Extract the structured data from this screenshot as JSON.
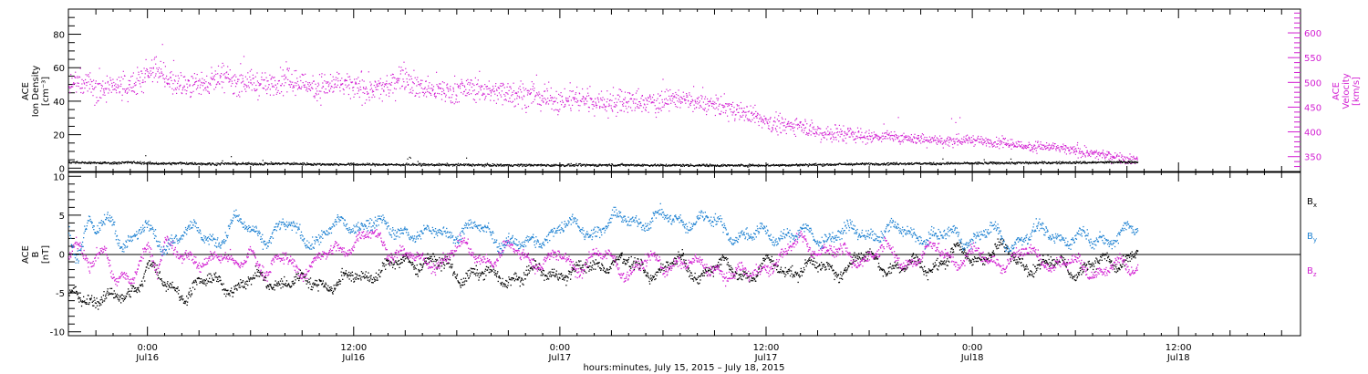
{
  "colors": {
    "axis": "#000000",
    "density": "#000000",
    "velocity": "#d21ed2",
    "bx": "#000000",
    "by": "#1e82d2",
    "bz": "#d21ed2"
  },
  "xaxis": {
    "title": "hours:minutes, July 15, 2015 – July 18, 2015",
    "range_hours": [
      -4.6,
      67.1
    ],
    "major_ticks": [
      {
        "h": 0,
        "time": "0:00",
        "date": "Jul16"
      },
      {
        "h": 12,
        "time": "12:00",
        "date": "Jul16"
      },
      {
        "h": 24,
        "time": "0:00",
        "date": "Jul17"
      },
      {
        "h": 36,
        "time": "12:00",
        "date": "Jul17"
      },
      {
        "h": 48,
        "time": "0:00",
        "date": "Jul18"
      },
      {
        "h": 60,
        "time": "12:00",
        "date": "Jul18"
      }
    ]
  },
  "chart_data": [
    {
      "type": "scatter",
      "panel": "plasma",
      "left_axis": {
        "label_lines": [
          "ACE",
          "Ion Density",
          "[cm⁻³]"
        ],
        "ylim": [
          -2,
          95
        ],
        "ticks": [
          0,
          20,
          40,
          60,
          80
        ]
      },
      "right_axis": {
        "label_lines": [
          "ACE",
          "Velocity",
          "[km/s]"
        ],
        "ylim": [
          320,
          648
        ],
        "ticks": [
          350,
          400,
          450,
          500,
          550,
          600
        ]
      },
      "series": [
        {
          "axis": "left",
          "color_key": "density",
          "x_hours": [
            -4.6,
            -4,
            -3,
            -2,
            -1,
            0,
            1,
            2,
            3,
            4,
            5,
            6,
            8,
            10,
            12,
            14,
            16,
            18,
            20,
            22,
            24,
            26,
            28,
            30,
            32,
            34,
            36,
            38,
            40,
            42,
            44,
            46,
            48,
            50,
            52,
            54,
            56,
            57.6
          ],
          "values": [
            3.8,
            3.6,
            3.5,
            3.3,
            3.8,
            3.2,
            3.0,
            3.2,
            2.9,
            2.8,
            3.0,
            2.8,
            3.0,
            2.6,
            2.5,
            2.4,
            2.3,
            2.3,
            2.1,
            2.1,
            2.0,
            2.1,
            2.2,
            2.0,
            2.0,
            1.9,
            2.0,
            2.2,
            2.5,
            2.8,
            3.0,
            3.0,
            3.2,
            3.4,
            3.5,
            3.6,
            3.8,
            4.0
          ]
        },
        {
          "axis": "right",
          "color_key": "velocity",
          "x_hours": [
            -4.6,
            -4.1,
            -3.5,
            -3,
            -2.5,
            -2,
            -1.5,
            -1,
            -0.5,
            0,
            0.5,
            1,
            2,
            3,
            4,
            5,
            6,
            7,
            8,
            9,
            10,
            11,
            12,
            13,
            14,
            14.8,
            15.5,
            16,
            17,
            18,
            19,
            20,
            21,
            22,
            23,
            24,
            25,
            26,
            27,
            28,
            29,
            30,
            31,
            32,
            33,
            34,
            35,
            36,
            37,
            38,
            39,
            40,
            41,
            42,
            43,
            44,
            45,
            46,
            47,
            48,
            49,
            50,
            51,
            52,
            53,
            54,
            55,
            56,
            57,
            57.6
          ],
          "values": [
            490,
            500,
            505,
            490,
            485,
            490,
            490,
            492,
            505,
            520,
            530,
            510,
            495,
            498,
            510,
            505,
            500,
            496,
            505,
            498,
            492,
            498,
            490,
            485,
            490,
            520,
            497,
            490,
            483,
            485,
            490,
            482,
            483,
            475,
            472,
            465,
            470,
            463,
            460,
            462,
            458,
            465,
            470,
            458,
            455,
            448,
            437,
            422,
            412,
            418,
            400,
            398,
            397,
            390,
            393,
            388,
            387,
            383,
            382,
            385,
            380,
            378,
            372,
            372,
            368,
            362,
            356,
            353,
            346,
            345
          ]
        }
      ]
    },
    {
      "type": "scatter",
      "panel": "magnetic-field",
      "left_axis": {
        "label_lines": [
          "ACE",
          "B",
          "[nT]"
        ],
        "ylim": [
          -10.5,
          10.5
        ],
        "ticks": [
          -10,
          -5,
          0,
          5,
          10
        ]
      },
      "legend": {
        "placement": "right",
        "entries": [
          {
            "name": "B",
            "sub": "x",
            "color_key": "bx"
          },
          {
            "name": "B",
            "sub": "y",
            "color_key": "by"
          },
          {
            "name": "B",
            "sub": "z",
            "color_key": "bz"
          }
        ]
      },
      "series": [
        {
          "legend_index": 0,
          "x_hours": [
            -4.6,
            -4.2,
            -3.8,
            -3.4,
            -3,
            -2.5,
            -2,
            -1.5,
            -1,
            -0.5,
            0,
            0.5,
            1,
            1.5,
            2,
            3,
            4,
            5,
            6,
            7,
            8,
            9,
            10,
            11,
            12,
            13,
            14,
            15,
            16,
            17,
            18,
            19,
            20,
            21,
            22,
            23,
            24,
            25,
            26,
            27,
            28,
            29,
            30,
            31,
            32,
            33,
            34,
            35,
            36,
            37,
            38,
            39,
            40,
            41,
            42,
            43,
            44,
            45,
            46,
            47,
            48,
            49,
            50,
            51,
            52,
            53,
            54,
            55,
            56,
            57,
            57.6
          ],
          "values": [
            -6.5,
            -4.5,
            -5.5,
            -5.5,
            -5.5,
            -5.8,
            -6.1,
            -5.5,
            -4.5,
            -3.5,
            -1,
            -3,
            -4,
            -4.3,
            -4.7,
            -4,
            -3.5,
            -4,
            -3.6,
            -3.2,
            -3.5,
            -3.8,
            -3.2,
            -3.9,
            -3.1,
            -2.2,
            -1.8,
            -1.0,
            -0.5,
            -1.5,
            -2.5,
            -2.2,
            -3.2,
            -2.8,
            -2.6,
            -2.5,
            -2.0,
            -2.5,
            -1.5,
            -0.5,
            -1.5,
            -2.0,
            -1.8,
            -1.0,
            -2.5,
            -1.5,
            -2.0,
            -2.5,
            -1.5,
            -2.0,
            -1.5,
            -1.8,
            -2.0,
            -1.0,
            -0.5,
            -1.2,
            -1.8,
            -1.5,
            -1.0,
            0.2,
            -0.5,
            0.5,
            0.2,
            -1.0,
            -1.5,
            -1.2,
            -1.8,
            -1.5,
            -1.0,
            -0.5,
            0.5
          ]
        },
        {
          "legend_index": 1,
          "x_hours": [
            -4.6,
            -4.2,
            -3.8,
            -3.4,
            -3,
            -2.5,
            -2,
            -1.5,
            -1,
            -0.5,
            0,
            0.5,
            1,
            1.5,
            2,
            3,
            4,
            5,
            6,
            7,
            8,
            9,
            10,
            11,
            12,
            13,
            14,
            15,
            16,
            17,
            18,
            19,
            20,
            21,
            22,
            23,
            24,
            25,
            26,
            27,
            28,
            29,
            30,
            31,
            32,
            33,
            34,
            35,
            36,
            37,
            38,
            39,
            40,
            41,
            42,
            43,
            44,
            45,
            46,
            47,
            48,
            49,
            50,
            51,
            52,
            53,
            54,
            55,
            56,
            57,
            57.6
          ],
          "values": [
            3.5,
            0.5,
            2,
            4.5,
            2.5,
            3.5,
            4.5,
            1.5,
            2,
            3,
            3,
            2,
            1,
            2.5,
            3,
            2.5,
            2,
            4,
            3,
            2.5,
            3.5,
            2.5,
            2,
            3.5,
            4,
            4.2,
            3,
            3.5,
            2,
            3.0,
            3.0,
            3.2,
            2.8,
            1.5,
            0.8,
            2.5,
            3.5,
            3.5,
            3.2,
            4.0,
            4.6,
            4.6,
            4.4,
            4.5,
            4.5,
            4.0,
            3.0,
            2.2,
            2.5,
            2.8,
            2.5,
            2.0,
            3.0,
            2.5,
            2.8,
            3.2,
            2.6,
            2.8,
            2.0,
            2.5,
            2.2,
            2.8,
            1.5,
            2.5,
            2.6,
            2.5,
            2.2,
            1.5,
            2.5,
            3.0,
            2.8
          ]
        },
        {
          "legend_index": 2,
          "x_hours": [
            -4.6,
            -4.2,
            -3.8,
            -3.4,
            -3,
            -2.5,
            -2,
            -1.5,
            -1,
            -0.5,
            0,
            0.5,
            1,
            1.5,
            2,
            3,
            4,
            5,
            6,
            7,
            8,
            9,
            10,
            11,
            12,
            13,
            14,
            15,
            16,
            17,
            18,
            19,
            20,
            21,
            22,
            23,
            24,
            25,
            26,
            27,
            28,
            29,
            30,
            31,
            32,
            33,
            34,
            35,
            36,
            37,
            38,
            39,
            40,
            41,
            42,
            43,
            44,
            45,
            46,
            47,
            48,
            49,
            50,
            51,
            52,
            53,
            54,
            55,
            56,
            57,
            57.6
          ],
          "values": [
            0.5,
            2,
            -1,
            -2.5,
            0,
            1,
            -2,
            -3,
            -4.5,
            -1.5,
            1,
            -1,
            2,
            0.5,
            -1,
            -0.5,
            0,
            -2,
            1,
            -3,
            0,
            -2,
            -1,
            1,
            1.5,
            2.5,
            1.0,
            0.0,
            -1.5,
            -0.5,
            0.8,
            0.0,
            -0.5,
            0.5,
            0.0,
            -1.0,
            -0.5,
            -1.5,
            0.0,
            -1.0,
            -2.0,
            -1.0,
            -1.5,
            -0.5,
            -2.0,
            -1.5,
            -2.5,
            -3.0,
            -1.0,
            -0.5,
            2.0,
            1.0,
            0.0,
            -0.5,
            0.0,
            0.5,
            -1.0,
            0.0,
            0.5,
            -0.5,
            0.0,
            -1.0,
            -0.5,
            0.0,
            -0.5,
            -1.0,
            -1.5,
            -2.0,
            -1.5,
            -2.0,
            -1.5
          ]
        }
      ]
    }
  ]
}
